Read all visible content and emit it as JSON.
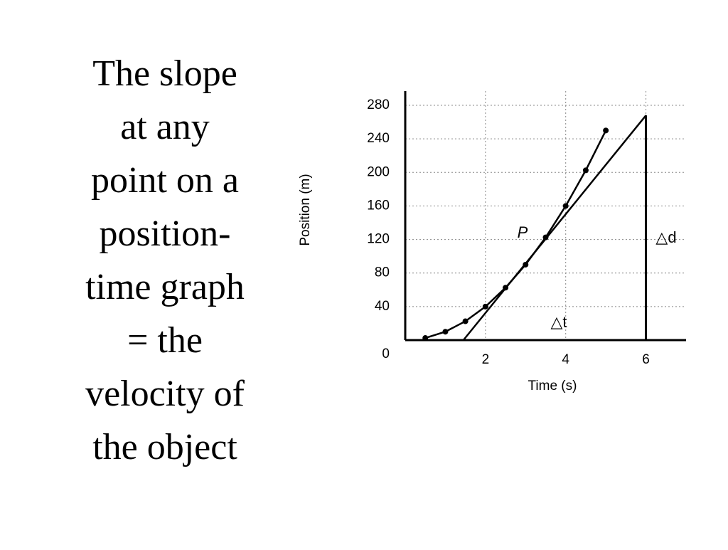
{
  "text_lines": [
    "The slope",
    "at any",
    "point on a",
    "position-",
    "time graph",
    "= the",
    "velocity of",
    "the object"
  ],
  "chart_data": {
    "type": "scatter",
    "x_label": "Time (s)",
    "y_label": "Position (m)",
    "xlim": [
      0,
      7
    ],
    "ylim": [
      0,
      297
    ],
    "xticks": [
      2,
      4,
      6
    ],
    "yticks": [
      0,
      40,
      80,
      120,
      160,
      200,
      240,
      280
    ],
    "grid": true,
    "series": [
      {
        "name": "position",
        "color": "#000000",
        "x": [
          0.5,
          1,
          1.5,
          2,
          2.5,
          3,
          3.5,
          4,
          4.5,
          5
        ],
        "values": [
          2.5,
          10,
          22.5,
          40,
          62.5,
          90,
          122.5,
          160,
          202.5,
          250
        ]
      },
      {
        "name": "tangent",
        "color": "#000000",
        "x": [
          1.45,
          6
        ],
        "values": [
          0,
          268
        ]
      }
    ],
    "annotations": [
      "P",
      "△d",
      "△t"
    ]
  }
}
